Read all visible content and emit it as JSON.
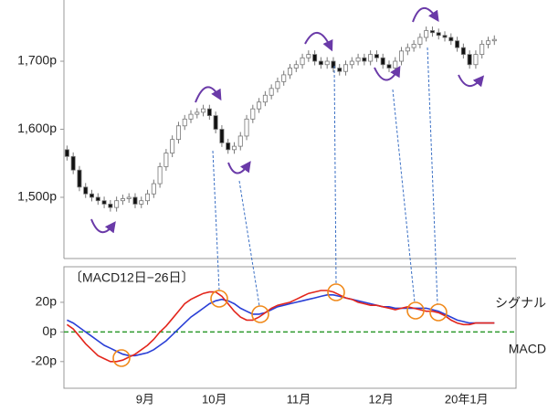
{
  "chart_data": [
    {
      "type": "candlestick",
      "x": [
        0,
        1,
        2,
        3,
        4,
        5,
        6,
        7,
        8,
        9,
        10,
        11,
        12,
        13,
        14,
        15,
        16,
        17,
        18,
        19,
        20,
        21,
        22,
        23,
        24,
        25,
        26,
        27,
        28,
        29,
        30,
        31,
        32,
        33,
        34,
        35,
        36,
        37,
        38,
        39,
        40,
        41,
        42,
        43,
        44,
        45,
        46,
        47,
        48,
        49,
        50,
        51,
        52,
        53,
        54,
        55,
        56,
        57,
        58,
        59,
        60,
        61,
        62,
        63,
        64,
        65,
        66,
        67,
        68,
        69
      ],
      "open": [
        1570,
        1560,
        1540,
        1515,
        1505,
        1500,
        1495,
        1490,
        1485,
        1495,
        1498,
        1500,
        1490,
        1495,
        1505,
        1520,
        1545,
        1565,
        1585,
        1605,
        1615,
        1622,
        1625,
        1630,
        1620,
        1600,
        1580,
        1570,
        1575,
        1590,
        1615,
        1630,
        1640,
        1650,
        1660,
        1670,
        1680,
        1690,
        1695,
        1705,
        1710,
        1700,
        1695,
        1700,
        1690,
        1685,
        1695,
        1700,
        1705,
        1700,
        1710,
        1705,
        1695,
        1690,
        1700,
        1715,
        1720,
        1725,
        1735,
        1745,
        1742,
        1738,
        1735,
        1730,
        1720,
        1710,
        1695,
        1710,
        1725,
        1730
      ],
      "high": [
        1576,
        1566,
        1546,
        1521,
        1511,
        1506,
        1501,
        1496,
        1501,
        1504,
        1506,
        1506,
        1501,
        1511,
        1526,
        1551,
        1571,
        1591,
        1611,
        1621,
        1628,
        1631,
        1636,
        1636,
        1626,
        1606,
        1586,
        1581,
        1596,
        1621,
        1636,
        1646,
        1656,
        1666,
        1676,
        1686,
        1696,
        1701,
        1711,
        1716,
        1716,
        1706,
        1706,
        1706,
        1696,
        1701,
        1706,
        1711,
        1711,
        1716,
        1716,
        1711,
        1701,
        1706,
        1721,
        1726,
        1731,
        1741,
        1751,
        1751,
        1748,
        1744,
        1741,
        1736,
        1726,
        1716,
        1716,
        1731,
        1736,
        1738
      ],
      "low": [
        1554,
        1534,
        1509,
        1499,
        1494,
        1489,
        1484,
        1479,
        1479,
        1489,
        1492,
        1484,
        1484,
        1489,
        1499,
        1514,
        1539,
        1559,
        1579,
        1599,
        1609,
        1616,
        1619,
        1614,
        1594,
        1574,
        1564,
        1564,
        1569,
        1584,
        1609,
        1624,
        1634,
        1644,
        1654,
        1664,
        1674,
        1684,
        1689,
        1699,
        1694,
        1689,
        1689,
        1684,
        1679,
        1679,
        1689,
        1694,
        1694,
        1694,
        1699,
        1689,
        1684,
        1684,
        1694,
        1709,
        1714,
        1719,
        1729,
        1736,
        1732,
        1729,
        1724,
        1714,
        1704,
        1689,
        1689,
        1704,
        1719,
        1724
      ],
      "close": [
        1560,
        1540,
        1515,
        1505,
        1500,
        1495,
        1490,
        1485,
        1495,
        1498,
        1500,
        1490,
        1495,
        1505,
        1520,
        1545,
        1565,
        1585,
        1605,
        1615,
        1622,
        1625,
        1630,
        1620,
        1600,
        1580,
        1570,
        1575,
        1590,
        1615,
        1630,
        1640,
        1650,
        1660,
        1670,
        1680,
        1690,
        1695,
        1705,
        1710,
        1700,
        1695,
        1700,
        1690,
        1685,
        1695,
        1700,
        1705,
        1700,
        1710,
        1705,
        1695,
        1690,
        1700,
        1715,
        1720,
        1725,
        1735,
        1745,
        1742,
        1738,
        1735,
        1730,
        1720,
        1710,
        1695,
        1710,
        1725,
        1730,
        1732
      ],
      "up_color": "#ffffff",
      "down_color": "#111111",
      "edge_color": "#777777",
      "xlim": [
        -0.5,
        72.5
      ],
      "ylim": [
        1410,
        1790
      ],
      "yticks": [
        {
          "value": 1500,
          "label": "1,500p"
        },
        {
          "value": 1600,
          "label": "1,600p"
        },
        {
          "value": 1700,
          "label": "1,700p"
        }
      ]
    },
    {
      "type": "line",
      "title": "〔MACD12日−26日〕",
      "x": [
        0,
        1,
        2,
        3,
        4,
        5,
        6,
        7,
        8,
        9,
        10,
        11,
        12,
        13,
        14,
        15,
        16,
        17,
        18,
        19,
        20,
        21,
        22,
        23,
        24,
        25,
        26,
        27,
        28,
        29,
        30,
        31,
        32,
        33,
        34,
        35,
        36,
        37,
        38,
        39,
        40,
        41,
        42,
        43,
        44,
        45,
        46,
        47,
        48,
        49,
        50,
        51,
        52,
        53,
        54,
        55,
        56,
        57,
        58,
        59,
        60,
        61,
        62,
        63,
        64,
        65,
        66,
        67,
        68,
        69
      ],
      "series": [
        {
          "name": "シグナル",
          "color": "#2a3fd6",
          "values": [
            8,
            6,
            3,
            0,
            -3,
            -6,
            -9,
            -11,
            -13,
            -15,
            -16,
            -16,
            -15,
            -14,
            -12,
            -9,
            -6,
            -2,
            2,
            6,
            10,
            13,
            16,
            19,
            21,
            22,
            21,
            19,
            16,
            14,
            12,
            12,
            13,
            15,
            17,
            18,
            19,
            20,
            21,
            22,
            23,
            24,
            25,
            25,
            24,
            23,
            22,
            21,
            20,
            19,
            18,
            17,
            17,
            16,
            16,
            16,
            16,
            16,
            16,
            15,
            14,
            12,
            10,
            8,
            7,
            6,
            6,
            6,
            6,
            6
          ]
        },
        {
          "name": "MACD",
          "color": "#e3261c",
          "values": [
            5,
            2,
            -3,
            -8,
            -12,
            -16,
            -18,
            -20,
            -20,
            -19,
            -17,
            -15,
            -12,
            -9,
            -5,
            0,
            4,
            9,
            14,
            19,
            22,
            24,
            26,
            27,
            27,
            24,
            19,
            14,
            10,
            8,
            8,
            10,
            13,
            16,
            18,
            19,
            20,
            22,
            24,
            26,
            27,
            28,
            28,
            27,
            25,
            23,
            22,
            20,
            19,
            18,
            18,
            17,
            16,
            15,
            16,
            17,
            16,
            15,
            14,
            14,
            13,
            11,
            8,
            6,
            5,
            5,
            6,
            6,
            6,
            6
          ]
        }
      ],
      "xlim": [
        -0.5,
        72.5
      ],
      "xticks": [
        {
          "value": 12.6,
          "label": "9月"
        },
        {
          "value": 23.8,
          "label": "10月"
        },
        {
          "value": 37.4,
          "label": "11月"
        },
        {
          "value": 50.7,
          "label": "12月"
        },
        {
          "value": 64.5,
          "label": "20年1月"
        }
      ],
      "ylim": [
        -38,
        44
      ],
      "yticks": [
        {
          "value": -20,
          "label": "-20p"
        },
        {
          "value": 0,
          "label": "0p"
        },
        {
          "value": 20,
          "label": "20p"
        }
      ],
      "zero_line": true,
      "zero_color": "#2e9a2e"
    }
  ]
}
